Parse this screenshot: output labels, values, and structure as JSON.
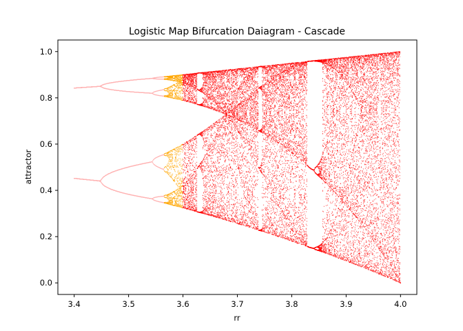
{
  "chart_data": {
    "type": "scatter",
    "title": "Logistic Map Bifurcation Daiagram - Cascade",
    "xlabel": "rr",
    "ylabel": "attractor",
    "xlim": [
      3.37,
      4.03
    ],
    "ylim": [
      -0.05,
      1.05
    ],
    "xticks": [
      "3.4",
      "3.5",
      "3.6",
      "3.7",
      "3.8",
      "3.9",
      "4.0"
    ],
    "yticks": [
      "0.0",
      "0.2",
      "0.4",
      "0.6",
      "0.8",
      "1.0"
    ],
    "grid": false,
    "legend": "none",
    "series": [
      {
        "map": "x_next = r * x * (1 - x)",
        "r_range": [
          3.4,
          4.0
        ],
        "colors": {
          "stable": "#ffb3b3",
          "cascade": "#ffa500",
          "chaotic": "#ff0000"
        },
        "color_regions": [
          {
            "r_range": [
              3.4,
              3.565
            ],
            "color": "stable"
          },
          {
            "r_range": [
              3.565,
              3.6
            ],
            "color": "cascade"
          },
          {
            "r_range": [
              3.6,
              4.0
            ],
            "color": "chaotic"
          }
        ]
      }
    ],
    "sample_points": [
      {
        "r": 3.4,
        "x": [
          0.452,
          0.842
        ]
      },
      {
        "r": 3.45,
        "x": [
          0.44,
          0.85
        ]
      },
      {
        "r": 3.5,
        "x": [
          0.383,
          0.501,
          0.827,
          0.875
        ]
      },
      {
        "r": 3.55,
        "x": [
          0.355,
          0.54,
          0.813,
          0.882
        ]
      },
      {
        "r": 3.6,
        "min": 0.324,
        "max": 0.9
      },
      {
        "r": 3.7,
        "min": 0.265,
        "max": 0.925
      },
      {
        "r": 3.8,
        "min": 0.186,
        "max": 0.95
      },
      {
        "r": 3.9,
        "min": 0.094,
        "max": 0.975
      },
      {
        "r": 4.0,
        "min": 0.0,
        "max": 1.0
      }
    ]
  }
}
